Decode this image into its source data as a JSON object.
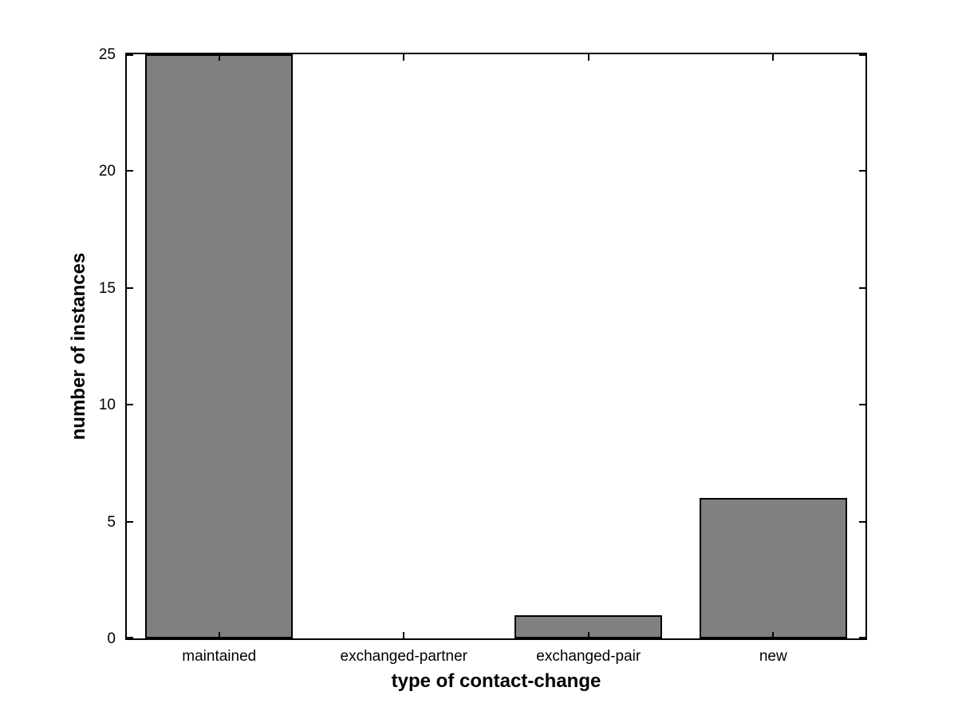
{
  "chart_data": {
    "type": "bar",
    "categories": [
      "maintained",
      "exchanged-partner",
      "exchanged-pair",
      "new"
    ],
    "values": [
      25,
      0,
      1,
      6
    ],
    "title": "",
    "xlabel": "type of contact-change",
    "ylabel": "number of instances",
    "ylim": [
      0,
      25
    ],
    "yticks": [
      0,
      5,
      10,
      15,
      20,
      25
    ],
    "bar_width_fraction": 0.8,
    "bar_color": "#808080",
    "bar_edge_color": "#000000",
    "axis_color": "#000000",
    "text_color": "#000000",
    "background_color": "#ffffff",
    "grid": false,
    "legend": "none",
    "box": true
  }
}
